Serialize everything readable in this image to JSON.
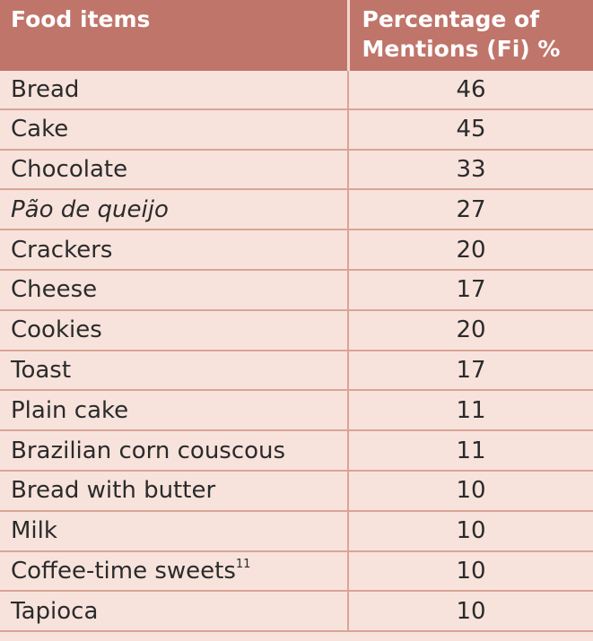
{
  "header": {
    "col1": "Food items",
    "col2_line1": "Percentage of",
    "col2_line2": "Mentions (Fi) %"
  },
  "rows": [
    {
      "item": "Bread",
      "value": "46"
    },
    {
      "item": "Cake",
      "value": "45"
    },
    {
      "item": "Chocolate",
      "value": "33"
    },
    {
      "item": "Pão de queijo",
      "value": "27"
    },
    {
      "item": "Crackers",
      "value": "20"
    },
    {
      "item": "Cheese",
      "value": "17"
    },
    {
      "item": "Cookies",
      "value": "20"
    },
    {
      "item": "Toast",
      "value": "17"
    },
    {
      "item": "Plain cake",
      "value": "11"
    },
    {
      "item": "Brazilian corn couscous",
      "value": "11"
    },
    {
      "item": "Bread with butter",
      "value": "10"
    },
    {
      "item": "Milk",
      "value": "10"
    },
    {
      "item": "Coffee-time sweets",
      "sup": "11",
      "value": "10"
    },
    {
      "item": "Tapioca",
      "value": "10"
    }
  ],
  "colors": {
    "header_bg": "#c0756a",
    "row_bg": "#f7e3dc",
    "border": "#d9a497"
  }
}
